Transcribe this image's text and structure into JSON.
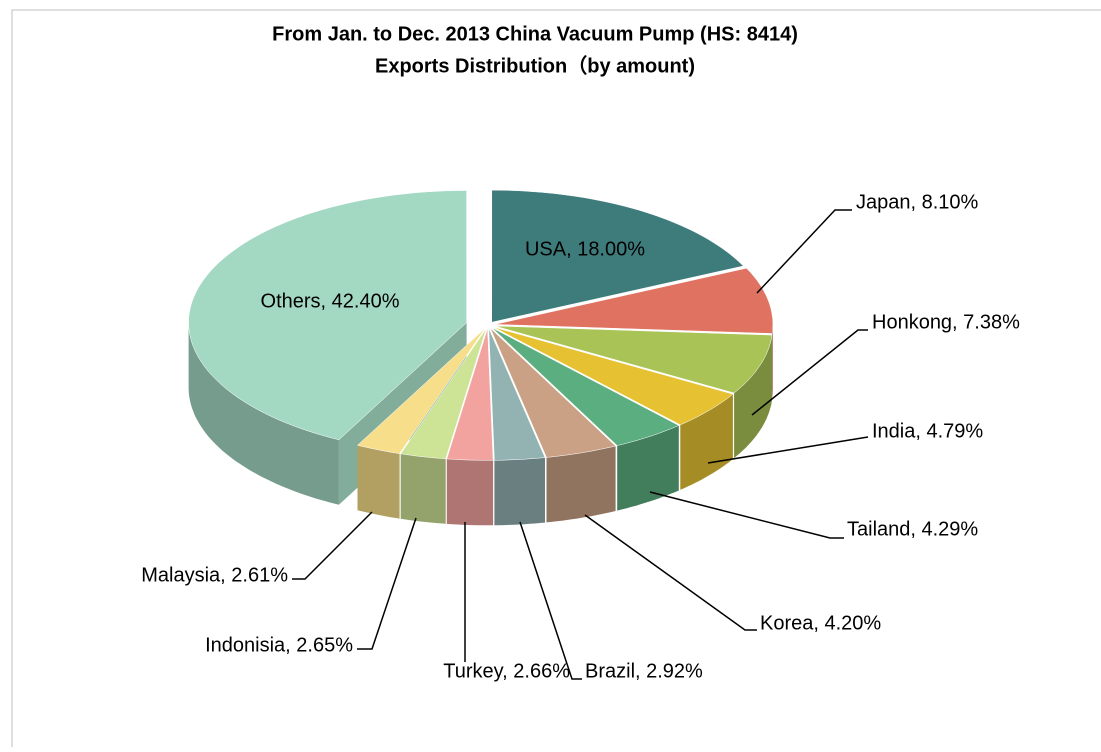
{
  "chart_data": {
    "type": "pie3d",
    "title": "From Jan. to Dec. 2013 China Vacuum Pump (HS: 8414)",
    "subtitle": "Exports Distribution（by amount)",
    "values": [
      18.0,
      8.1,
      7.38,
      4.79,
      4.29,
      4.2,
      2.92,
      2.66,
      2.65,
      2.61,
      42.4
    ],
    "value_labels": [
      "USA, 18.00%",
      "Japan, 8.10%",
      "Honkong, 7.38%",
      "India, 4.79%",
      "Tailand, 4.29%",
      "Korea, 4.20%",
      "Brazil, 2.92%",
      "Turkey, 2.66%",
      "Indonisia, 2.65%",
      "Malaysia, 2.61%",
      "Others, 42.40%"
    ],
    "colors": [
      "#3e7c7c",
      "#e07262",
      "#a9c356",
      "#e6c233",
      "#5bae80",
      "#caa184",
      "#93b2b2",
      "#f2a3a0",
      "#cde396",
      "#f7de8a",
      "#a3d8c2"
    ]
  }
}
